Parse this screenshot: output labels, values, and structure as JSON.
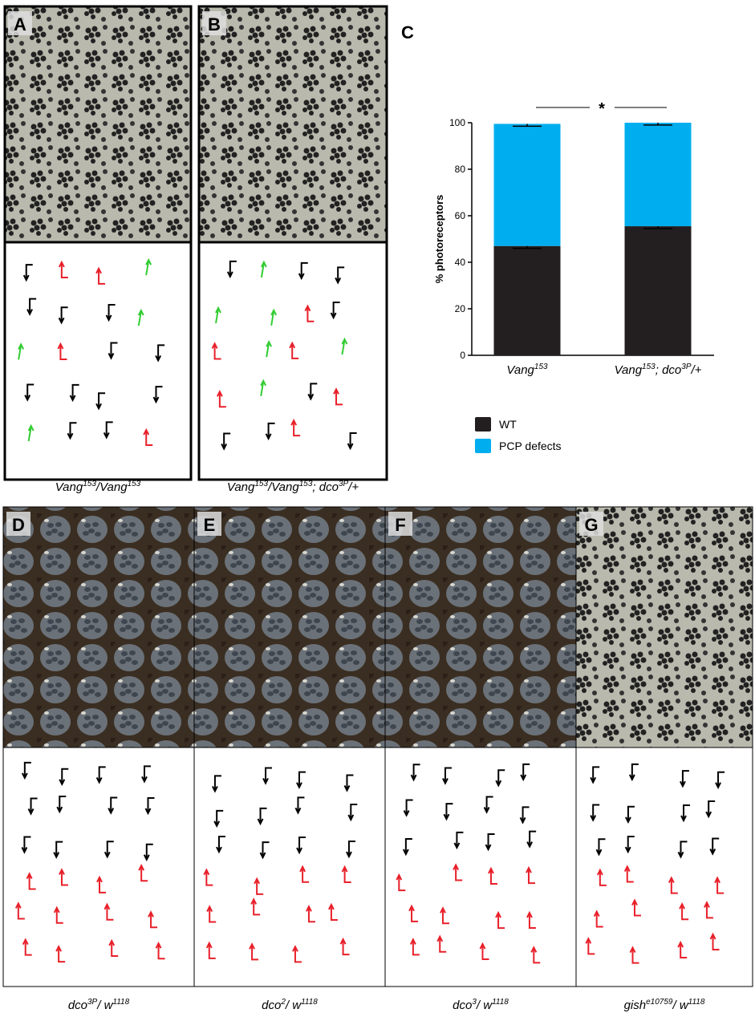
{
  "panels": [
    {
      "label": "A",
      "caption": [
        {
          "t": "Vang"
        },
        {
          "sup": "153"
        },
        {
          "t": "/Vang"
        },
        {
          "sup": "153"
        }
      ]
    },
    {
      "label": "B",
      "caption": [
        {
          "t": "Vang"
        },
        {
          "sup": "153"
        },
        {
          "t": "/Vang"
        },
        {
          "sup": "153"
        },
        {
          "t": "; dco"
        },
        {
          "sup": "3P"
        },
        {
          "t": "/+"
        }
      ]
    },
    {
      "label": "D",
      "caption": [
        {
          "t": "dco"
        },
        {
          "sup": "3P"
        },
        {
          "t": "/ w"
        },
        {
          "sup": "1118"
        }
      ]
    },
    {
      "label": "E",
      "caption": [
        {
          "t": "dco"
        },
        {
          "sup": "2"
        },
        {
          "t": "/ w"
        },
        {
          "sup": "1118"
        }
      ]
    },
    {
      "label": "F",
      "caption": [
        {
          "t": "dco"
        },
        {
          "sup": "3"
        },
        {
          "t": "/ w"
        },
        {
          "sup": "1118"
        }
      ]
    },
    {
      "label": "G",
      "caption": [
        {
          "t": "gish"
        },
        {
          "sup": "e10759"
        },
        {
          "t": "/ w"
        },
        {
          "sup": "1118"
        }
      ]
    }
  ],
  "chart_data": {
    "type": "bar",
    "stacked": true,
    "label": "C",
    "ylabel": "% photoreceptors",
    "annotation": "*",
    "categories": [
      [
        {
          "t": "Vang"
        },
        {
          "sup": "153"
        }
      ],
      [
        {
          "t": "Vang"
        },
        {
          "sup": "153"
        },
        {
          "t": "; dco"
        },
        {
          "sup": "3P"
        },
        {
          "t": "/+"
        }
      ]
    ],
    "series": [
      {
        "name": "WT",
        "color": "#231f20",
        "values": [
          47,
          55.5
        ],
        "errors": [
          1,
          1
        ]
      },
      {
        "name": "PCP defects",
        "color": "#00aeef",
        "values": [
          52.5,
          44.5
        ],
        "errors": [
          1,
          1
        ]
      }
    ],
    "ylim": [
      0,
      100
    ],
    "yticks": [
      0,
      20,
      40,
      60,
      80,
      100
    ]
  }
}
